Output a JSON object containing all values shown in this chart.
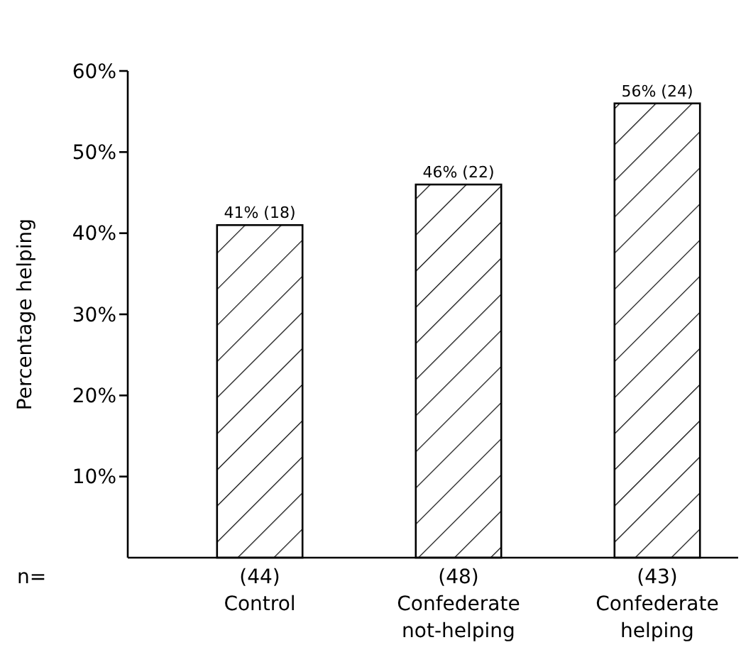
{
  "chart_data": {
    "type": "bar",
    "ylabel": "Percentage helping",
    "categories": [
      "(44)\nControl",
      "(48)\nConfederate\nnot-helping",
      "(43)\nConfederate\nhelping"
    ],
    "values": [
      41,
      46,
      56
    ],
    "value_labels": [
      "41% (18)",
      "46% (22)",
      "56% (24)"
    ],
    "color": "#000000",
    "ylim": [
      0,
      60
    ],
    "yticks": [
      {
        "value": 10,
        "label": "10%"
      },
      {
        "value": 20,
        "label": "20%"
      },
      {
        "value": 30,
        "label": "30%"
      },
      {
        "value": 40,
        "label": "40%"
      },
      {
        "value": 50,
        "label": "50%"
      },
      {
        "value": 60,
        "label": "60%"
      }
    ],
    "annotations": [
      "n="
    ]
  }
}
